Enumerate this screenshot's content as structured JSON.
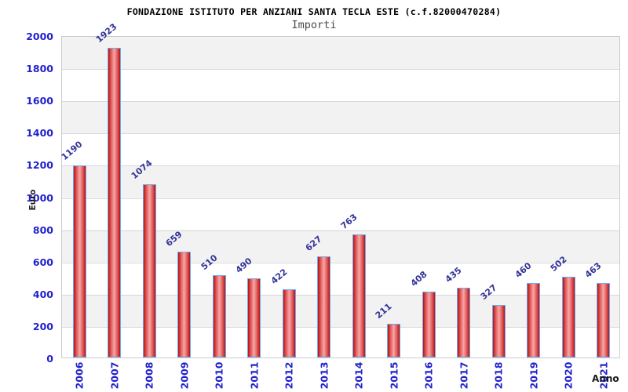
{
  "header": {
    "title": "FONDAZIONE ISTITUTO PER ANZIANI SANTA TECLA ESTE (c.f.82000470284)",
    "subtitle": "Importi"
  },
  "chart_data": {
    "type": "bar",
    "title": "FONDAZIONE ISTITUTO PER ANZIANI SANTA TECLA ESTE (c.f.82000470284)",
    "subtitle": "Importi",
    "xlabel": "Anno",
    "ylabel": "Euro",
    "categories": [
      "2006",
      "2007",
      "2008",
      "2009",
      "2010",
      "2011",
      "2012",
      "2013",
      "2014",
      "2015",
      "2016",
      "2017",
      "2018",
      "2019",
      "2020",
      "2021"
    ],
    "values": [
      1190,
      1923,
      1074,
      659,
      510,
      490,
      422,
      627,
      763,
      211,
      408,
      435,
      327,
      460,
      502,
      463
    ],
    "ylim": [
      0,
      2000
    ],
    "yticks": [
      0,
      200,
      400,
      600,
      800,
      1000,
      1200,
      1400,
      1600,
      1800,
      2000
    ],
    "grid": "horizontal-bands",
    "legend_position": "none",
    "colors": {
      "axis_label": "#2222cc",
      "value_label": "#333399",
      "bar_edge": "#6aabf0",
      "bar_dark": "#b91111",
      "bar_light": "#f5a8a8",
      "band_gray": "#f2f2f2",
      "gridline": "#d9d9d9",
      "title": "#000000",
      "subtitle": "#4a4a4a"
    }
  }
}
